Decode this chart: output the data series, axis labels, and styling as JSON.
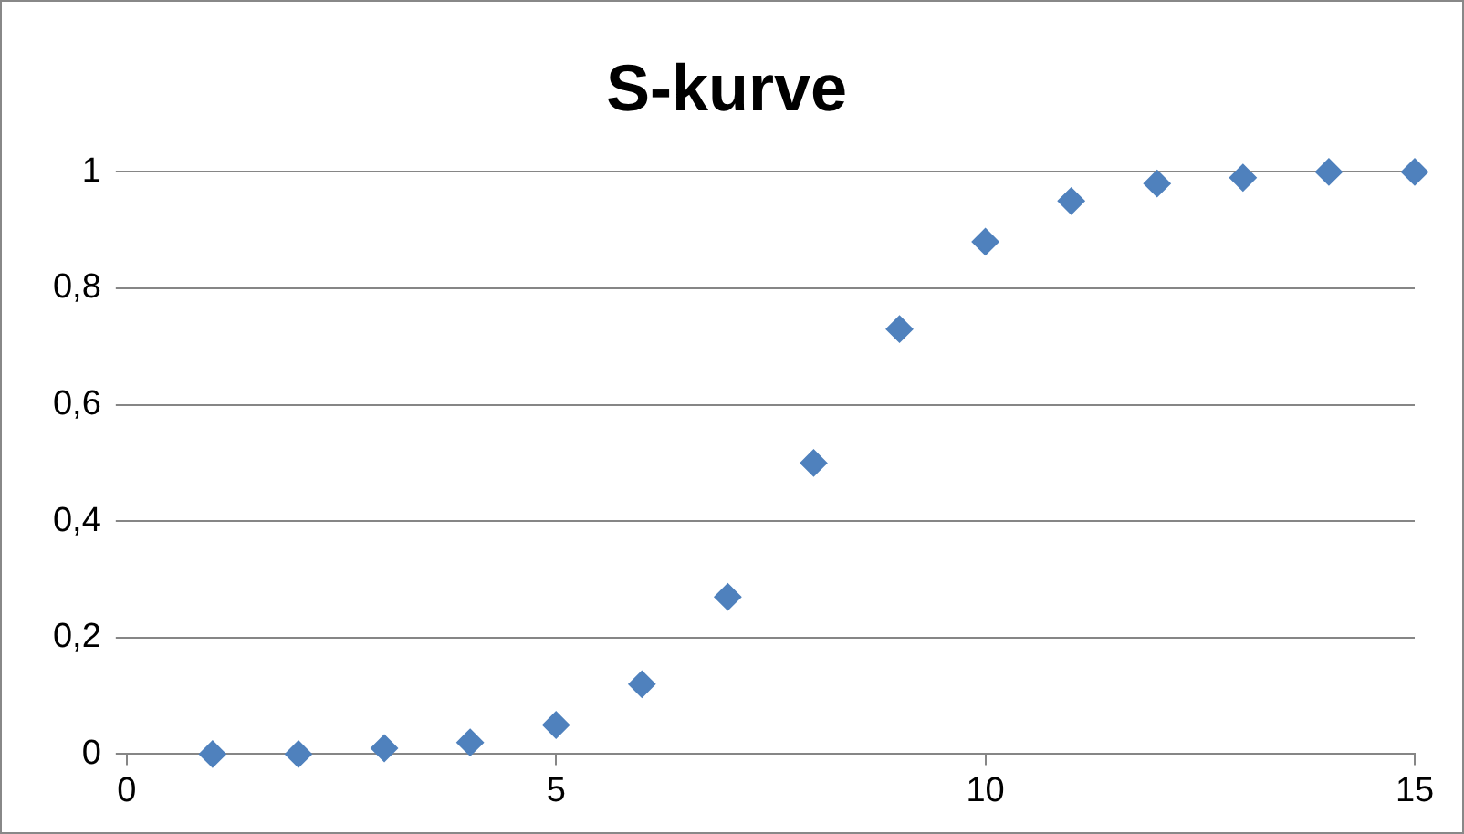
{
  "chart_data": {
    "type": "scatter",
    "title": "S-kurve",
    "x": [
      1,
      2,
      3,
      4,
      5,
      6,
      7,
      8,
      9,
      10,
      11,
      12,
      13,
      14,
      15
    ],
    "series": [
      {
        "color": "#4f81bd",
        "values": [
          0,
          0,
          0.01,
          0.02,
          0.05,
          0.12,
          0.27,
          0.5,
          0.73,
          0.88,
          0.95,
          0.98,
          0.99,
          1,
          1
        ]
      }
    ],
    "xlim": [
      0,
      15
    ],
    "xticks": [
      0,
      5,
      10,
      15
    ],
    "ylim": [
      0,
      1
    ],
    "yticks": [
      0,
      {
        "value": 0.2,
        "label": "0,2"
      },
      {
        "value": 0.4,
        "label": "0,4"
      },
      {
        "value": 0.6,
        "label": "0,6"
      },
      {
        "value": 0.8,
        "label": "0,8"
      },
      1
    ],
    "grid": "y",
    "legend": false,
    "marker": "diamond"
  }
}
